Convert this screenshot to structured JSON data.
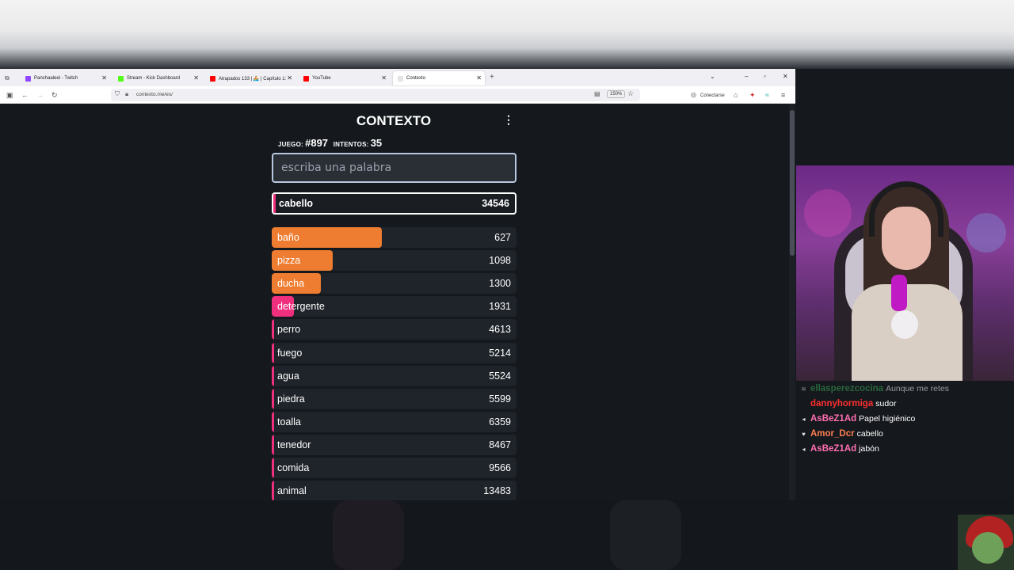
{
  "browser": {
    "tabs": [
      {
        "label": "Panchaaleel - Twitch",
        "color": "#9146ff"
      },
      {
        "label": "Stream - Kick Dashboard",
        "color": "#53fc18"
      },
      {
        "label": "Atrapados 133 | 🚣 | Capítulo 1:",
        "color": "#ff0000"
      },
      {
        "label": "YouTube",
        "color": "#ff0000"
      },
      {
        "label": "Contexto",
        "color": "#e4e4e4"
      }
    ],
    "url": "contexto.me/es/",
    "zoom": "150%",
    "connect_label": "Conectarse"
  },
  "game": {
    "title": "CONTEXTO",
    "game_label": "JUEGO:",
    "game_number": "#897",
    "attempts_label": "INTENTOS:",
    "attempts": "35",
    "input_placeholder": "escriba una palabra",
    "current": {
      "word": "cabello",
      "distance": "34546"
    },
    "guesses": [
      {
        "word": "baño",
        "distance": "627",
        "color": "#ef7d31",
        "fill": 0.45
      },
      {
        "word": "pizza",
        "distance": "1098",
        "color": "#ef7d31",
        "fill": 0.25
      },
      {
        "word": "ducha",
        "distance": "1300",
        "color": "#ef7d31",
        "fill": 0.2
      },
      {
        "word": "detergente",
        "distance": "1931",
        "color": "#f02f7f",
        "fill": 0.09
      },
      {
        "word": "perro",
        "distance": "4613",
        "color": "#f02f7f",
        "fill": 0.01
      },
      {
        "word": "fuego",
        "distance": "5214",
        "color": "#f02f7f",
        "fill": 0.01
      },
      {
        "word": "agua",
        "distance": "5524",
        "color": "#f02f7f",
        "fill": 0.01
      },
      {
        "word": "piedra",
        "distance": "5599",
        "color": "#f02f7f",
        "fill": 0.01
      },
      {
        "word": "toalla",
        "distance": "6359",
        "color": "#f02f7f",
        "fill": 0.01
      },
      {
        "word": "tenedor",
        "distance": "8467",
        "color": "#f02f7f",
        "fill": 0.01
      },
      {
        "word": "comida",
        "distance": "9566",
        "color": "#f02f7f",
        "fill": 0.01
      },
      {
        "word": "animal",
        "distance": "13483",
        "color": "#f02f7f",
        "fill": 0.01
      }
    ]
  },
  "chat": [
    {
      "user": "ellasperezcocina",
      "msg": "Aunque me retes",
      "color": "#3aa655",
      "badge": "≋"
    },
    {
      "user": "dannyhormiga",
      "msg": "sudor",
      "color": "#ff3030",
      "badge": ""
    },
    {
      "user": "AsBeZ1Ad",
      "msg": "Papel higiénico",
      "color": "#ff6fb1",
      "badge": "◂"
    },
    {
      "user": "Amor_Dcr",
      "msg": "cabello",
      "color": "#ff7f50",
      "badge": "♥"
    },
    {
      "user": "AsBeZ1Ad",
      "msg": "jabón",
      "color": "#ff6fb1",
      "badge": "◂"
    }
  ]
}
